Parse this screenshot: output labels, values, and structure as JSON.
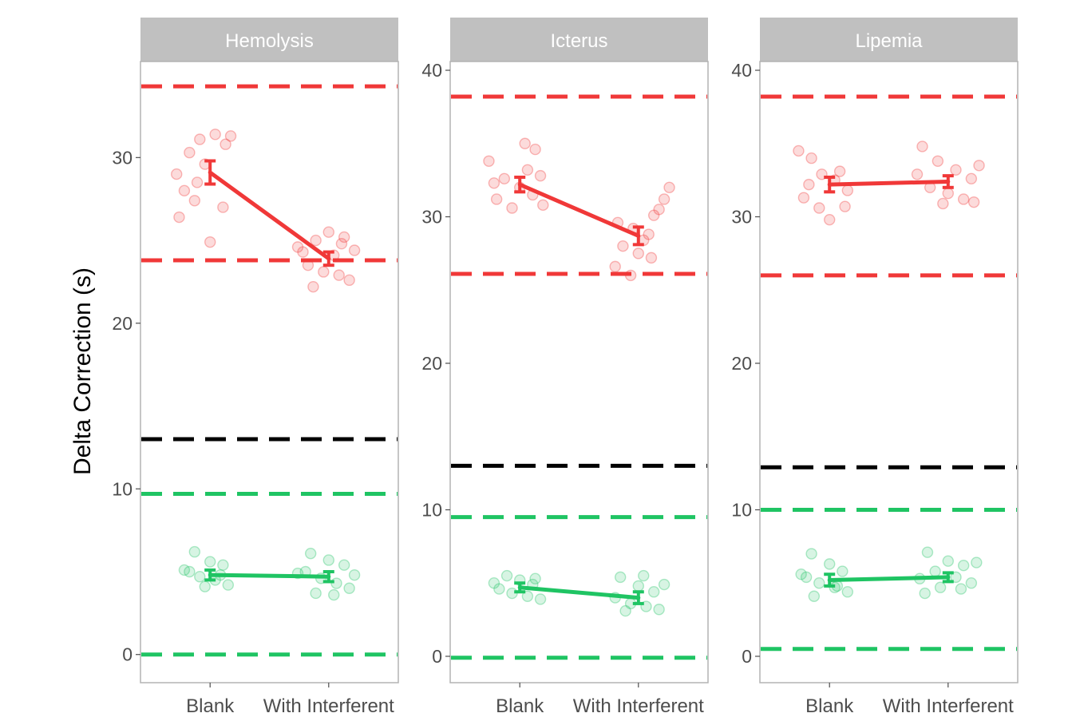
{
  "chart_data": {
    "type": "scatter",
    "ylabel": "Delta Correction (s)",
    "categories": [
      "Blank",
      "With Interferent"
    ],
    "colors": {
      "high": "#F03838",
      "low": "#1FC463",
      "threshold": "#000000",
      "strip_bg": "#C0C0C0",
      "strip_text": "#FFFFFF",
      "axis_text": "#4D4D4D",
      "panel_border": "#B3B3B3"
    },
    "panels": [
      {
        "title": "Hemolysis",
        "ylim": [
          -1.7,
          35.8
        ],
        "yticks": [
          0,
          10,
          20,
          30
        ],
        "hlines": [
          {
            "y": 34.3,
            "color": "high"
          },
          {
            "y": 23.8,
            "color": "high"
          },
          {
            "y": 13.0,
            "color": "threshold"
          },
          {
            "y": 9.7,
            "color": "low"
          },
          {
            "y": 0.0,
            "color": "low"
          }
        ],
        "groups": [
          {
            "color": "high",
            "means": [
              29.1,
              23.9
            ],
            "errors": [
              0.7,
              0.4
            ],
            "points": [
              [
                [
                  -0.13,
                  29.0
                ],
                [
                  -0.08,
                  30.3
                ],
                [
                  -0.04,
                  31.1
                ],
                [
                  0.02,
                  31.4
                ],
                [
                  0.06,
                  30.8
                ],
                [
                  -0.1,
                  28.0
                ],
                [
                  -0.06,
                  27.4
                ],
                [
                  -0.12,
                  26.4
                ],
                [
                  0.05,
                  27.0
                ],
                [
                  0.0,
                  24.9
                ],
                [
                  -0.02,
                  29.6
                ],
                [
                  0.08,
                  31.3
                ],
                [
                  -0.05,
                  28.5
                ]
              ],
              [
                [
                  -0.1,
                  24.3
                ],
                [
                  -0.05,
                  25.0
                ],
                [
                  0.0,
                  25.5
                ],
                [
                  0.05,
                  24.8
                ],
                [
                  0.1,
                  24.4
                ],
                [
                  -0.08,
                  23.5
                ],
                [
                  -0.02,
                  23.1
                ],
                [
                  0.04,
                  22.9
                ],
                [
                  0.08,
                  22.6
                ],
                [
                  -0.06,
                  22.2
                ],
                [
                  0.02,
                  24.1
                ],
                [
                  -0.12,
                  24.6
                ],
                [
                  0.06,
                  25.2
                ]
              ]
            ]
          },
          {
            "color": "low",
            "means": [
              4.8,
              4.7
            ],
            "errors": [
              0.3,
              0.3
            ],
            "points": [
              [
                [
                  -0.06,
                  6.2
                ],
                [
                  0.0,
                  5.6
                ],
                [
                  0.05,
                  5.4
                ],
                [
                  -0.08,
                  5.0
                ],
                [
                  -0.04,
                  4.7
                ],
                [
                  0.02,
                  4.5
                ],
                [
                  0.07,
                  4.2
                ],
                [
                  -0.02,
                  4.1
                ],
                [
                  0.04,
                  4.8
                ],
                [
                  -0.1,
                  5.1
                ]
              ],
              [
                [
                  -0.07,
                  6.1
                ],
                [
                  0.0,
                  5.7
                ],
                [
                  0.06,
                  5.4
                ],
                [
                  -0.09,
                  5.0
                ],
                [
                  -0.03,
                  4.6
                ],
                [
                  0.03,
                  4.3
                ],
                [
                  0.08,
                  4.0
                ],
                [
                  -0.05,
                  3.7
                ],
                [
                  0.02,
                  3.6
                ],
                [
                  0.1,
                  4.8
                ],
                [
                  -0.12,
                  4.9
                ]
              ]
            ]
          }
        ]
      },
      {
        "title": "Icterus",
        "ylim": [
          -1.8,
          40.6
        ],
        "yticks": [
          0,
          10,
          20,
          30,
          40
        ],
        "hlines": [
          {
            "y": 38.2,
            "color": "high"
          },
          {
            "y": 26.1,
            "color": "high"
          },
          {
            "y": 13.0,
            "color": "threshold"
          },
          {
            "y": 9.5,
            "color": "low"
          },
          {
            "y": -0.1,
            "color": "low"
          }
        ],
        "groups": [
          {
            "color": "high",
            "means": [
              32.2,
              28.7
            ],
            "errors": [
              0.5,
              0.6
            ],
            "points": [
              [
                [
                  -0.12,
                  33.8
                ],
                [
                  -0.06,
                  32.6
                ],
                [
                  0.0,
                  32.0
                ],
                [
                  0.05,
                  31.5
                ],
                [
                  0.09,
                  30.8
                ],
                [
                  -0.09,
                  31.2
                ],
                [
                  -0.03,
                  30.6
                ],
                [
                  0.03,
                  33.2
                ],
                [
                  0.06,
                  34.6
                ],
                [
                  0.02,
                  35.0
                ],
                [
                  -0.1,
                  32.3
                ],
                [
                  0.08,
                  32.8
                ]
              ],
              [
                [
                  -0.08,
                  29.6
                ],
                [
                  -0.02,
                  29.2
                ],
                [
                  0.04,
                  28.8
                ],
                [
                  0.08,
                  30.5
                ],
                [
                  0.1,
                  31.2
                ],
                [
                  0.12,
                  32.0
                ],
                [
                  -0.06,
                  28.0
                ],
                [
                  0.0,
                  27.5
                ],
                [
                  0.05,
                  27.2
                ],
                [
                  -0.09,
                  26.6
                ],
                [
                  -0.03,
                  26.0
                ],
                [
                  0.06,
                  30.1
                ],
                [
                  0.02,
                  28.4
                ]
              ]
            ]
          },
          {
            "color": "low",
            "means": [
              4.7,
              4.0
            ],
            "errors": [
              0.3,
              0.4
            ],
            "points": [
              [
                [
                  -0.05,
                  5.5
                ],
                [
                  0.0,
                  5.2
                ],
                [
                  0.05,
                  4.9
                ],
                [
                  -0.08,
                  4.6
                ],
                [
                  -0.03,
                  4.3
                ],
                [
                  0.03,
                  4.1
                ],
                [
                  0.08,
                  3.9
                ],
                [
                  -0.1,
                  5.0
                ],
                [
                  0.06,
                  5.3
                ]
              ],
              [
                [
                  -0.07,
                  5.4
                ],
                [
                  0.0,
                  4.8
                ],
                [
                  0.06,
                  4.4
                ],
                [
                  -0.09,
                  4.0
                ],
                [
                  -0.03,
                  3.6
                ],
                [
                  0.03,
                  3.4
                ],
                [
                  0.08,
                  3.2
                ],
                [
                  -0.05,
                  3.1
                ],
                [
                  0.1,
                  4.9
                ],
                [
                  0.02,
                  5.5
                ]
              ]
            ]
          }
        ]
      },
      {
        "title": "Lipemia",
        "ylim": [
          -1.8,
          40.6
        ],
        "yticks": [
          0,
          10,
          20,
          30,
          40
        ],
        "hlines": [
          {
            "y": 38.2,
            "color": "high"
          },
          {
            "y": 26.0,
            "color": "high"
          },
          {
            "y": 12.9,
            "color": "threshold"
          },
          {
            "y": 10.0,
            "color": "low"
          },
          {
            "y": 0.5,
            "color": "low"
          }
        ],
        "groups": [
          {
            "color": "high",
            "means": [
              32.2,
              32.4
            ],
            "errors": [
              0.5,
              0.4
            ],
            "points": [
              [
                [
                  -0.12,
                  34.5
                ],
                [
                  -0.07,
                  34.0
                ],
                [
                  -0.03,
                  32.9
                ],
                [
                  0.02,
                  32.5
                ],
                [
                  0.07,
                  31.8
                ],
                [
                  -0.1,
                  31.3
                ],
                [
                  -0.04,
                  30.6
                ],
                [
                  0.0,
                  29.8
                ],
                [
                  0.06,
                  30.7
                ],
                [
                  -0.08,
                  32.2
                ],
                [
                  0.04,
                  33.1
                ]
              ],
              [
                [
                  -0.1,
                  34.8
                ],
                [
                  -0.04,
                  33.8
                ],
                [
                  0.03,
                  33.2
                ],
                [
                  0.09,
                  32.6
                ],
                [
                  -0.07,
                  32.0
                ],
                [
                  0.0,
                  31.6
                ],
                [
                  0.06,
                  31.2
                ],
                [
                  0.1,
                  31.0
                ],
                [
                  -0.02,
                  30.9
                ],
                [
                  0.12,
                  33.5
                ],
                [
                  -0.12,
                  32.9
                ]
              ]
            ]
          },
          {
            "color": "low",
            "means": [
              5.2,
              5.4
            ],
            "errors": [
              0.4,
              0.3
            ],
            "points": [
              [
                [
                  -0.07,
                  7.0
                ],
                [
                  0.0,
                  6.3
                ],
                [
                  0.05,
                  5.8
                ],
                [
                  -0.09,
                  5.4
                ],
                [
                  -0.04,
                  5.0
                ],
                [
                  0.02,
                  4.7
                ],
                [
                  0.07,
                  4.4
                ],
                [
                  -0.06,
                  4.1
                ],
                [
                  0.03,
                  4.8
                ],
                [
                  -0.11,
                  5.6
                ]
              ],
              [
                [
                  -0.08,
                  7.1
                ],
                [
                  0.0,
                  6.5
                ],
                [
                  0.06,
                  6.2
                ],
                [
                  -0.05,
                  5.8
                ],
                [
                  0.03,
                  5.4
                ],
                [
                  0.09,
                  5.0
                ],
                [
                  -0.03,
                  4.7
                ],
                [
                  0.05,
                  4.6
                ],
                [
                  -0.09,
                  4.3
                ],
                [
                  0.11,
                  6.4
                ],
                [
                  -0.11,
                  5.3
                ]
              ]
            ]
          }
        ]
      }
    ]
  }
}
